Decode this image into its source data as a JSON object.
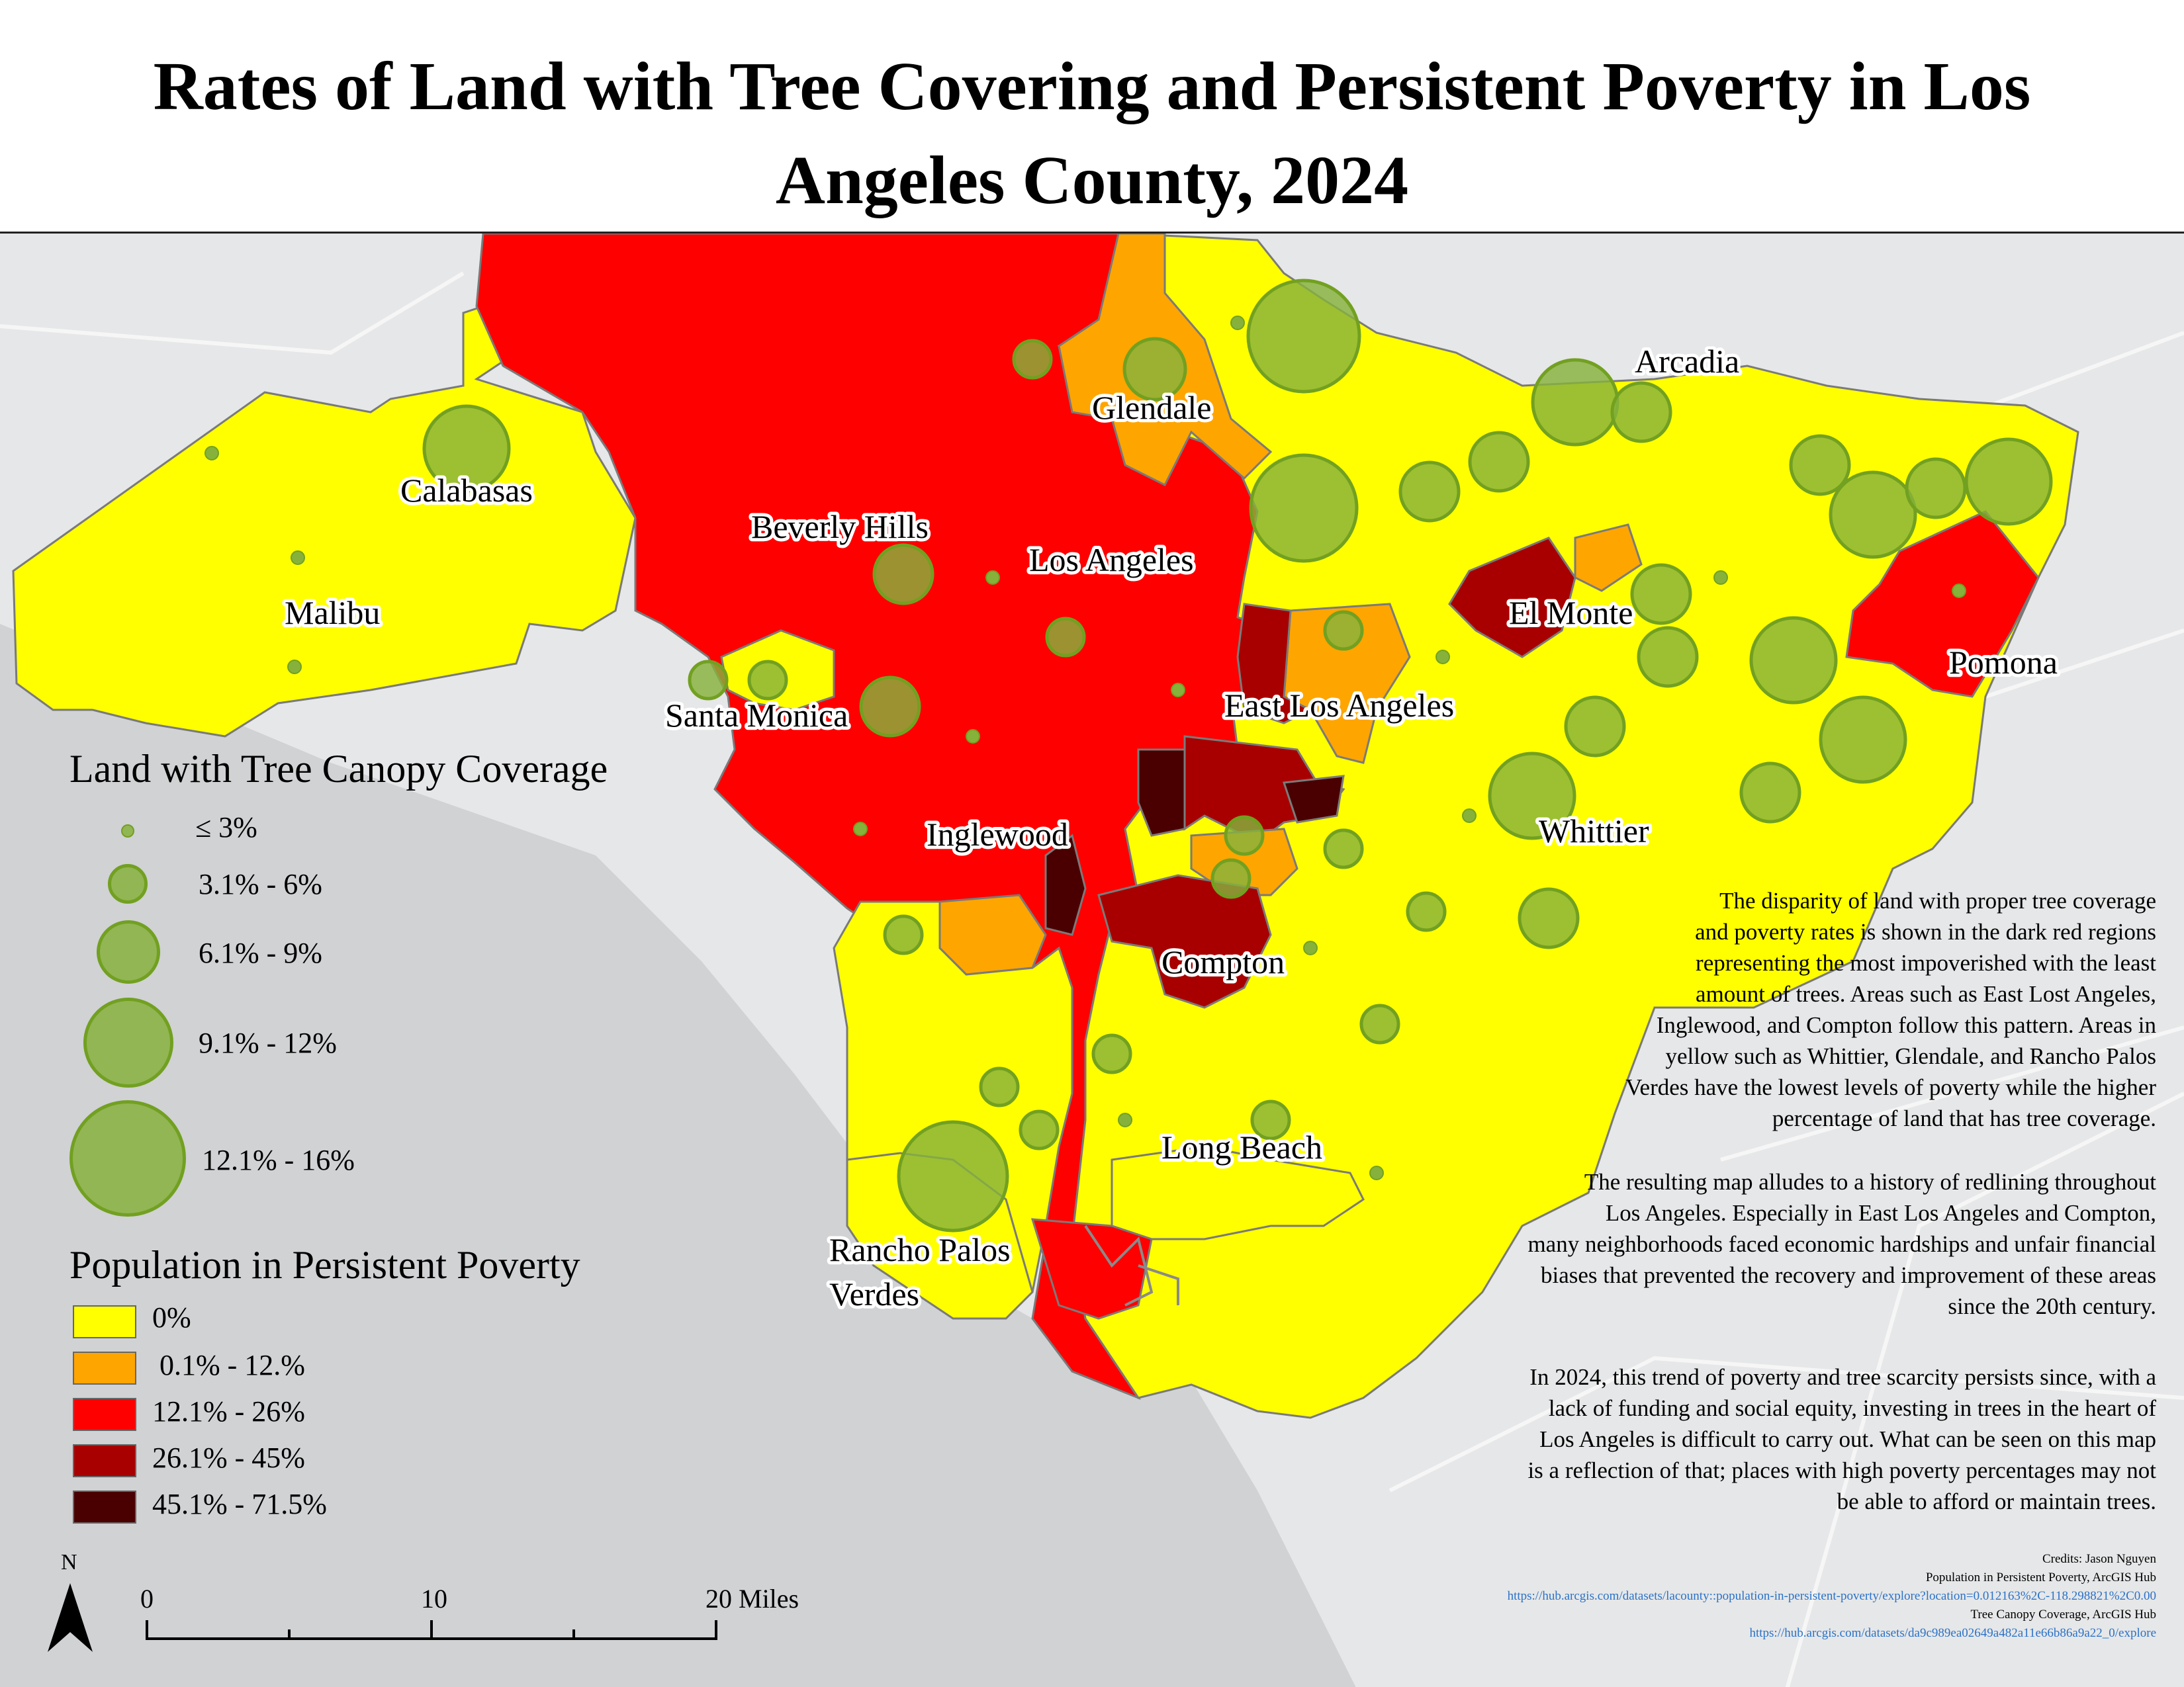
{
  "title": {
    "line1": "Rates of Land with Tree Covering and Persistent Poverty in Los",
    "line2": "Angeles County, 2024"
  },
  "places": {
    "calabasas": "Calabasas",
    "malibu": "Malibu",
    "beverly_hills": "Beverly Hills",
    "los_angeles": "Los Angeles",
    "glendale": "Glendale",
    "arcadia": "Arcadia",
    "el_monte": "El Monte",
    "pomona": "Pomona",
    "east_los_angeles": "East Los Angeles",
    "santa_monica": "Santa Monica",
    "inglewood": "Inglewood",
    "whittier": "Whittier",
    "compton": "Compton",
    "long_beach": "Long Beach",
    "rancho_palos_1": "Rancho Palos",
    "rancho_palos_2": "Verdes"
  },
  "legend_canopy": {
    "title": "Land with Tree Canopy Coverage",
    "classes": [
      "≤ 3%",
      "3.1% - 6%",
      "6.1% - 9%",
      "9.1% - 12%",
      "12.1% - 16%"
    ],
    "color": "#86b23c"
  },
  "legend_poverty": {
    "title": "Population in Persistent Poverty",
    "classes": [
      {
        "label": "0%",
        "color": "#ffff00"
      },
      {
        "label": " 0.1% - 12.%",
        "color": "#ffa500"
      },
      {
        "label": "12.1% - 26%",
        "color": "#ff0000"
      },
      {
        "label": "26.1% - 45%",
        "color": "#a80000"
      },
      {
        "label": "45.1% - 71.5%",
        "color": "#4a0000"
      }
    ]
  },
  "description": {
    "p1": [
      "The disparity of land with proper tree coverage",
      "and poverty rates is shown in the dark red regions",
      "representing the most impoverished with the least",
      "amount of trees. Areas such as East Lost Angeles,",
      "Inglewood, and Compton follow this pattern. Areas in",
      "yellow such as Whittier, Glendale, and Rancho Palos",
      "Verdes have the lowest levels of poverty while the higher",
      "percentage of land that has tree coverage."
    ],
    "p2": [
      "The resulting map alludes to a history of redlining throughout",
      "Los Angeles. Especially in East Los Angeles and Compton,",
      "many neighborhoods faced economic hardships and unfair financial",
      "biases that prevented the recovery and improvement of these areas",
      "since the 20th century."
    ],
    "p3": [
      "In 2024, this trend of poverty and tree scarcity persists since, with a",
      "lack of funding and social equity, investing in trees in the heart of",
      "Los Angeles is difficult to carry out. What can be seen on this map",
      "is a reflection of that; places with high poverty percentages may not",
      "be able to afford or maintain trees."
    ]
  },
  "credits": {
    "author": "Credits: Jason Nguyen",
    "source1": "Population in Persistent Poverty, ArcGIS Hub",
    "link1": "https://hub.arcgis.com/datasets/lacounty::population-in-persistent-poverty/explore?location=0.012163%2C-118.298821%2C0.00",
    "source2": "Tree Canopy Coverage, ArcGIS Hub",
    "link2": "https://hub.arcgis.com/datasets/da9c989ea02649a482a11e66b86a9a22_0/explore"
  },
  "scale_bar": {
    "north": "N",
    "ticks": [
      "0",
      "10",
      "20 Miles"
    ]
  }
}
